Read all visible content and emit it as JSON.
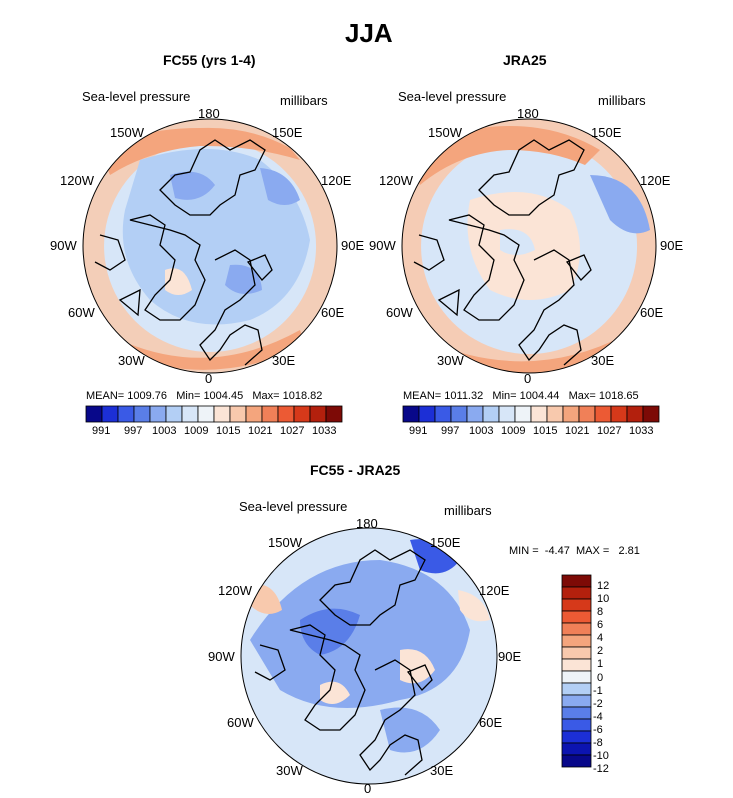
{
  "figure_title": "JJA",
  "colors": {
    "blue_deep": "#08088a",
    "blue_5": "#1c2fd6",
    "blue_4": "#3a5ae6",
    "blue_3": "#5a7ee8",
    "blue_2": "#8aaaf0",
    "blue_1": "#b3cff5",
    "blue_0": "#d7e6f8",
    "neutral": "#eef3f8",
    "red_0": "#fbe4d6",
    "red_1": "#f8c9ad",
    "red_2": "#f4a57d",
    "red_3": "#f08058",
    "red_4": "#ec5a34",
    "red_5": "#d6391a",
    "red_6": "#b3200d",
    "red_deep": "#7d0a06",
    "land": "#000000"
  },
  "panels": [
    {
      "title": "FC55 (yrs 1-4)",
      "variable": "Sea-level pressure",
      "units": "millibars",
      "lon_labels": {
        "n": "180",
        "ne1": "150E",
        "ne2": "120E",
        "e": "90E",
        "se1": "60E",
        "se2": "30E",
        "s": "0",
        "sw1": "30W",
        "sw2": "60W",
        "w": "90W",
        "nw2": "120W",
        "nw1": "150W"
      },
      "stats": {
        "mean_label": "MEAN=",
        "mean": "1009.76",
        "min_label": "Min=",
        "min": "1004.45",
        "max_label": "Max=",
        "max": "1018.82"
      },
      "colorbar_labels": [
        "991",
        "997",
        "1003",
        "1009",
        "1015",
        "1021",
        "1027",
        "1033"
      ]
    },
    {
      "title": "JRA25",
      "variable": "Sea-level pressure",
      "units": "millibars",
      "lon_labels": {
        "n": "180",
        "ne1": "150E",
        "ne2": "120E",
        "e": "90E",
        "se1": "60E",
        "se2": "30E",
        "s": "0",
        "sw1": "30W",
        "sw2": "60W",
        "w": "90W",
        "nw2": "120W",
        "nw1": "150W"
      },
      "stats": {
        "mean_label": "MEAN=",
        "mean": "1011.32",
        "min_label": "Min=",
        "min": "1004.44",
        "max_label": "Max=",
        "max": "1018.65"
      },
      "colorbar_labels": [
        "991",
        "997",
        "1003",
        "1009",
        "1015",
        "1021",
        "1027",
        "1033"
      ]
    },
    {
      "title": "FC55 - JRA25",
      "variable": "Sea-level pressure",
      "units": "millibars",
      "lon_labels": {
        "n": "180",
        "ne1": "150E",
        "ne2": "120E",
        "e": "90E",
        "se1": "60E",
        "se2": "30E",
        "s": "0",
        "sw1": "30W",
        "sw2": "60W",
        "w": "90W",
        "nw2": "120W",
        "nw1": "150W"
      },
      "stats": {
        "min_label": "MIN =",
        "min": "-4.47",
        "max_label": "MAX =",
        "max": "2.81"
      },
      "colorbar_labels": [
        "12",
        "10",
        "8",
        "6",
        "4",
        "2",
        "1",
        "0",
        "-1",
        "-2",
        "-4",
        "-6",
        "-8",
        "-10",
        "-12"
      ]
    }
  ]
}
